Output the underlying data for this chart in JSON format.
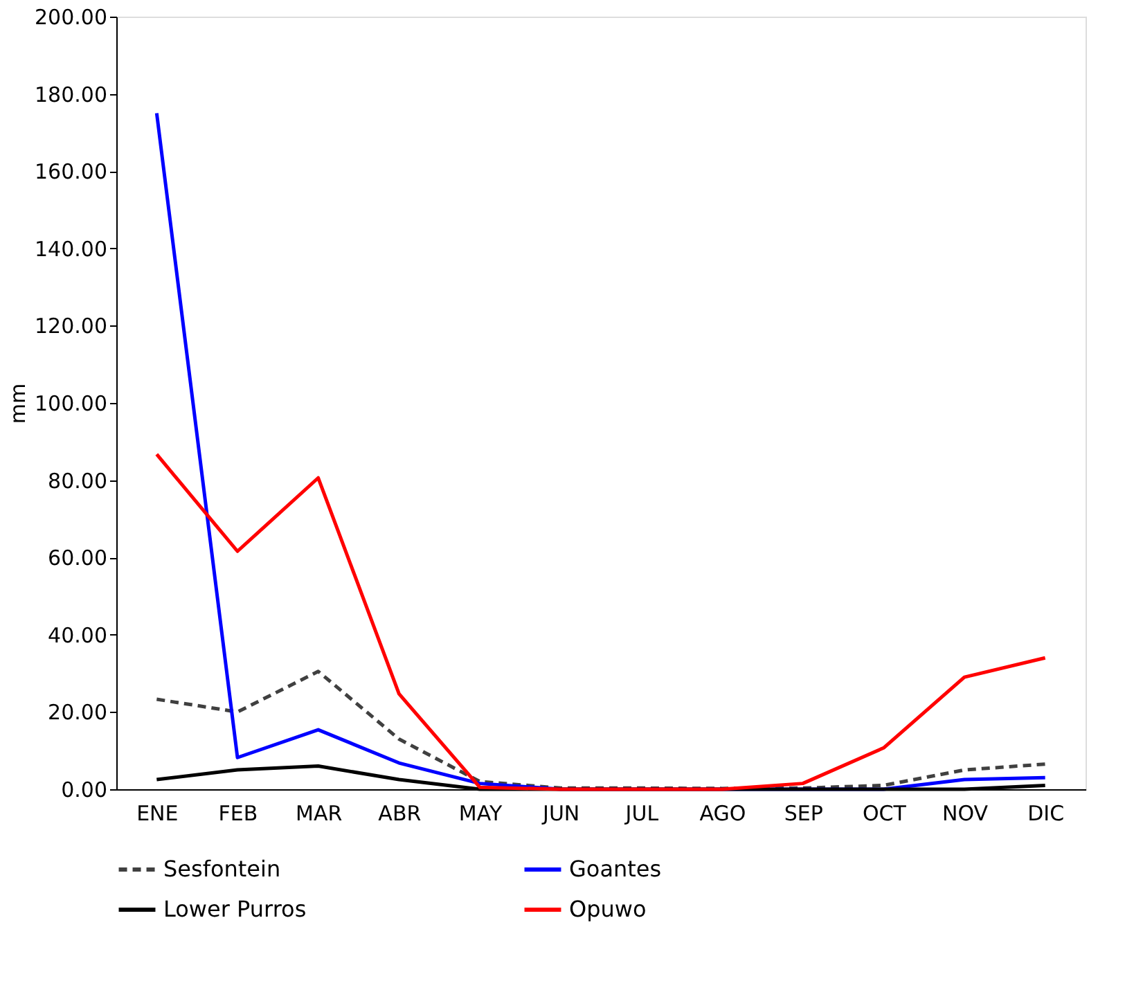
{
  "chart_data": {
    "type": "line",
    "ylabel": "mm",
    "categories": [
      "ENE",
      "FEB",
      "MAR",
      "ABR",
      "MAY",
      "JUN",
      "JUL",
      "AGO",
      "SEP",
      "OCT",
      "NOV",
      "DIC"
    ],
    "series": [
      {
        "name": "Sesfontein",
        "color": "#404040",
        "line_style": "dashed",
        "values": [
          23.3,
          20,
          30.5,
          13,
          2,
          0.3,
          0.3,
          0.2,
          0.3,
          1,
          5,
          6.5
        ]
      },
      {
        "name": "Goantes",
        "color": "#0000ff",
        "line_style": "solid",
        "values": [
          175,
          8.2,
          15.4,
          6.8,
          1.5,
          0,
          0,
          0,
          0,
          0,
          2.5,
          3
        ]
      },
      {
        "name": "Lower Purros",
        "color": "#000000",
        "line_style": "solid",
        "values": [
          2.5,
          5,
          6,
          2.5,
          0,
          0,
          0,
          0,
          0,
          0,
          0,
          1
        ]
      },
      {
        "name": "Opuwo",
        "color": "#ff0000",
        "line_style": "solid",
        "values": [
          86.7,
          61.6,
          80.6,
          24.7,
          0.5,
          0,
          0,
          0,
          1.5,
          10.7,
          29,
          34
        ]
      }
    ],
    "ylim": [
      0,
      200
    ],
    "yticks": [
      {
        "value": 0,
        "label": "0.00"
      },
      {
        "value": 20,
        "label": "20.00"
      },
      {
        "value": 40,
        "label": "40.00"
      },
      {
        "value": 60,
        "label": "60.00"
      },
      {
        "value": 80,
        "label": "80.00"
      },
      {
        "value": 100,
        "label": "100.00"
      },
      {
        "value": 120,
        "label": "120.00"
      },
      {
        "value": 140,
        "label": "140.00"
      },
      {
        "value": 160,
        "label": "160.00"
      },
      {
        "value": 180,
        "label": "180.00"
      },
      {
        "value": 200,
        "label": "200.00"
      }
    ],
    "grid": false,
    "legend": "bottom",
    "marker": "none"
  }
}
